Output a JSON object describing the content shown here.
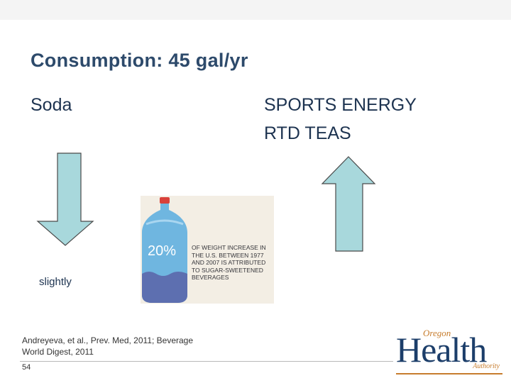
{
  "slide": {
    "title": "Consumption: 45 gal/yr",
    "left_heading": "Soda",
    "right_heading_line1": "SPORTS ENERGY",
    "right_heading_line2": "RTD TEAS",
    "left_note": "slightly",
    "citation_line1": "Andreyeva, et al., Prev. Med, 2011; Beverage",
    "citation_line2": "World Digest, 2011",
    "page_number": "54"
  },
  "arrows": {
    "left": {
      "direction": "down",
      "icon": "arrow-down-icon",
      "fill": "#a8d8dc",
      "stroke": "#4a4a4a"
    },
    "right": {
      "direction": "up",
      "icon": "arrow-up-icon",
      "fill": "#a8d8dc",
      "stroke": "#4a4a4a"
    }
  },
  "image": {
    "percent": "20%",
    "caption": "OF WEIGHT INCREASE IN THE U.S. BETWEEN 1977 AND 2007 IS ATTRIBUTED TO SUGAR-SWEETENED BEVERAGES"
  },
  "logo": {
    "top_text": "Oregon",
    "main_text": "Health",
    "bottom_text": "Authority",
    "primary_color": "#1c3e6a",
    "accent_color": "#c77d2e"
  }
}
